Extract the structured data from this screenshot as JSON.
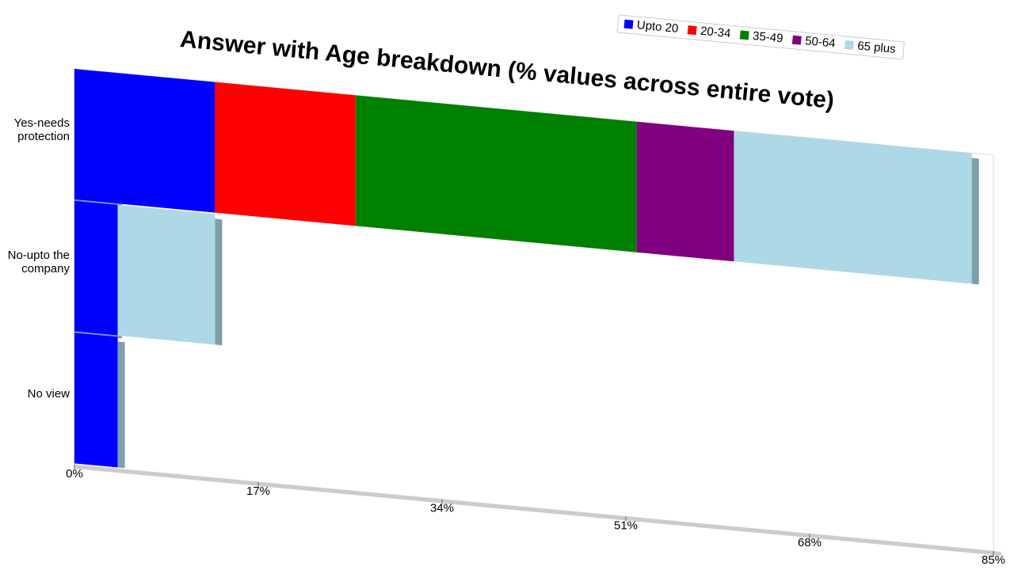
{
  "chart_data": {
    "type": "bar",
    "orientation": "horizontal",
    "stacked": true,
    "title": "Answer with Age breakdown (% values across entire vote)",
    "categories": [
      "Yes-needs protection",
      "No-upto the company",
      "No view"
    ],
    "series": [
      {
        "name": "Upto 20",
        "color": "#0000ff",
        "values": [
          13,
          4,
          4
        ]
      },
      {
        "name": "20-34",
        "color": "#ff0000",
        "values": [
          13,
          0,
          0
        ]
      },
      {
        "name": "35-49",
        "color": "#008000",
        "values": [
          26,
          0,
          0
        ]
      },
      {
        "name": "50-64",
        "color": "#800080",
        "values": [
          9,
          0,
          0
        ]
      },
      {
        "name": "65 plus",
        "color": "#add8e6",
        "values": [
          22,
          9,
          0
        ]
      }
    ],
    "xlim": [
      0,
      85
    ],
    "xticks": [
      {
        "value": 0,
        "label": "0%"
      },
      {
        "value": 17,
        "label": "17%"
      },
      {
        "value": 34,
        "label": "34%"
      },
      {
        "value": 51,
        "label": "51%"
      },
      {
        "value": 68,
        "label": "68%"
      },
      {
        "value": 85,
        "label": "85%"
      }
    ],
    "legend": "top-right"
  }
}
